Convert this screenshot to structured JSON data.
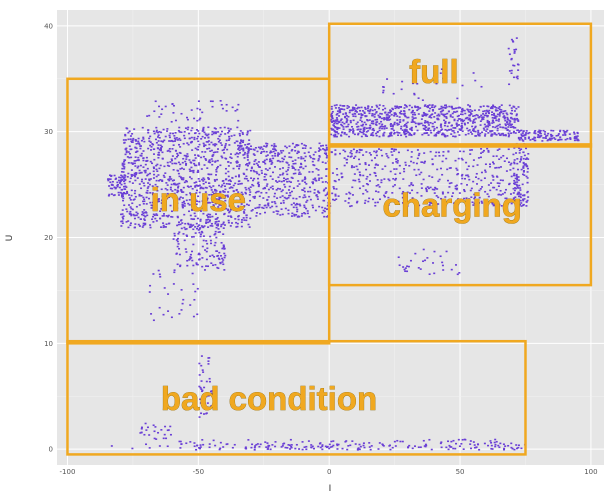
{
  "chart_data": {
    "type": "scatter",
    "title": "",
    "xlabel": "I",
    "ylabel": "U",
    "xlim": [
      -104,
      105
    ],
    "ylim": [
      -1.5,
      41.5
    ],
    "x_ticks": [
      -100,
      -50,
      0,
      50,
      100
    ],
    "y_ticks": [
      0,
      10,
      20,
      30,
      40
    ],
    "grid": true,
    "point_color": "#6a3fd6",
    "clusters": [
      {
        "name": "in use",
        "x_range": [
          -85,
          -5
        ],
        "y_range": [
          19.5,
          30.5
        ]
      },
      {
        "name": "full",
        "x_range": [
          0,
          75
        ],
        "y_range": [
          29,
          33
        ]
      },
      {
        "name": "charging",
        "x_range": [
          0,
          95
        ],
        "y_range": [
          22,
          29
        ]
      },
      {
        "name": "bad condition",
        "x_range": [
          -85,
          75
        ],
        "y_range": [
          0,
          2
        ]
      }
    ],
    "regions": [
      {
        "label": "in use",
        "x": [
          -100,
          0
        ],
        "y": [
          10,
          35
        ]
      },
      {
        "label": "full",
        "x": [
          0,
          100
        ],
        "y": [
          28.6,
          40.2
        ]
      },
      {
        "label": "charging",
        "x": [
          0,
          100
        ],
        "y": [
          15.5,
          28.8
        ]
      },
      {
        "label": "bad condition",
        "x": [
          -100,
          75
        ],
        "y": [
          -0.5,
          10.2
        ]
      }
    ],
    "region_color": "#f0a820"
  }
}
